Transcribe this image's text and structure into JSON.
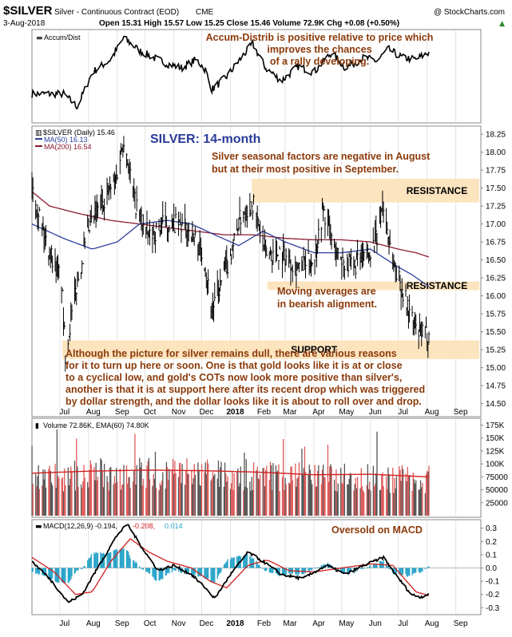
{
  "header": {
    "symbol": "$SILVER",
    "description": "Silver - Continuous Contract (EOD)",
    "exchange": "CME",
    "copyright": "@ StockCharts.com",
    "date": "3-Aug-2018",
    "quote": "Open 15.31  High 15.57  Low 15.25  Close 15.46  Volume 72.9K  Chg +0.08 (+0.50%)",
    "quote_arrow": "▲"
  },
  "colors": {
    "price": "#000000",
    "ma50": "#2d3e9c",
    "ma200": "#8b1a2f",
    "band": "#fce4bf",
    "annotation": "#8b3a0a",
    "title": "#2a3a9a",
    "volume_bar": "#e05a5a",
    "volume_dark": "#555555",
    "macd_hist": "#2aa4c9",
    "macd_signal": "#d02020"
  },
  "icons": {
    "accum_dist": "a-d-glyph",
    "price_panel": "bar-chart-glyph",
    "volume_panel": "volume-glyph",
    "macd_panel": "macd-glyph"
  },
  "chart_data": [
    {
      "type": "line",
      "panel": "accum_dist",
      "legend": "Accum/Dist",
      "annotation": [
        "Accum-Distrib is positive relative to price which",
        "improves the chances",
        "of a rally developing."
      ],
      "x": [
        "2017-07-05",
        "2017-07-20",
        "2017-08-05",
        "2017-08-25",
        "2017-09-08",
        "2017-09-25",
        "2017-10-10",
        "2017-10-25",
        "2017-11-10",
        "2017-11-25",
        "2017-12-05",
        "2017-12-12",
        "2017-12-28",
        "2018-01-15",
        "2018-01-25",
        "2018-02-08",
        "2018-02-25",
        "2018-03-15",
        "2018-04-01",
        "2018-04-20",
        "2018-05-05",
        "2018-05-25",
        "2018-06-08",
        "2018-06-20",
        "2018-07-05",
        "2018-07-20",
        "2018-08-03"
      ],
      "values": [
        30,
        15,
        55,
        70,
        95,
        80,
        72,
        65,
        60,
        70,
        58,
        35,
        50,
        75,
        88,
        60,
        45,
        62,
        55,
        78,
        60,
        72,
        68,
        82,
        72,
        70,
        78
      ],
      "ylim": [
        0,
        100
      ]
    },
    {
      "type": "line",
      "panel": "price",
      "legend_symbol": "$SILVER (Daily) 15.46",
      "legend_ma50": "MA(50) 16.13",
      "legend_ma200": "MA(200) 16.54",
      "title": "SILVER: 14-month",
      "annotations": {
        "seasonal": [
          "Silver seasonal factors are negative in August",
          "but at their most positive in September."
        ],
        "moving_avgs": [
          "Moving averages are",
          "in bearish alignment."
        ],
        "summary": [
          "Although the picture for silver remains dull, there are various reasons",
          "for it to turn up here or soon. One is that gold looks like it is at or close",
          "to a cyclical low, and gold's COTs now look more positive than silver's,",
          "another is that it is at support here after its recent drop which was triggered",
          "by dollar strength, and the dollar looks like it is about to roll over and drop."
        ]
      },
      "bands": [
        {
          "label": "RESISTANCE",
          "y_low": 17.3,
          "y_high": 17.63
        },
        {
          "label": "RESISTANCE",
          "y_low": 16.08,
          "y_high": 16.2
        },
        {
          "label": "SUPPORT",
          "y_low": 15.12,
          "y_high": 15.38
        }
      ],
      "y_ticks": [
        "18.25",
        "18.00",
        "17.75",
        "17.50",
        "17.25",
        "17.00",
        "16.75",
        "16.50",
        "16.25",
        "16.00",
        "15.75",
        "15.50",
        "15.25",
        "15.00",
        "14.75",
        "14.50"
      ],
      "ylim": [
        14.34,
        18.34
      ],
      "series": [
        {
          "name": "$SILVER",
          "x": [
            "2017-06-01",
            "2017-06-15",
            "2017-07-03",
            "2017-07-07",
            "2017-07-20",
            "2017-08-01",
            "2017-08-15",
            "2017-08-30",
            "2017-09-08",
            "2017-09-20",
            "2017-10-05",
            "2017-10-20",
            "2017-11-03",
            "2017-11-20",
            "2017-12-04",
            "2017-12-12",
            "2017-12-28",
            "2018-01-12",
            "2018-01-25",
            "2018-02-08",
            "2018-02-25",
            "2018-03-15",
            "2018-04-01",
            "2018-04-11",
            "2018-04-25",
            "2018-05-10",
            "2018-05-25",
            "2018-06-08",
            "2018-06-14",
            "2018-06-25",
            "2018-07-10",
            "2018-07-20",
            "2018-08-03"
          ],
          "values": [
            17.6,
            16.8,
            16.2,
            15.2,
            16.2,
            16.9,
            17.3,
            17.6,
            18.2,
            17.3,
            16.8,
            17.0,
            17.0,
            16.9,
            16.5,
            15.8,
            16.4,
            17.1,
            17.3,
            16.6,
            16.6,
            16.4,
            16.5,
            17.2,
            16.6,
            16.4,
            16.5,
            16.8,
            17.3,
            16.5,
            15.9,
            15.5,
            15.46
          ]
        },
        {
          "name": "MA(50)",
          "x": [
            "2017-06-01",
            "2017-07-05",
            "2017-08-05",
            "2017-09-01",
            "2017-09-25",
            "2017-10-25",
            "2017-11-20",
            "2017-12-15",
            "2018-01-10",
            "2018-02-05",
            "2018-03-01",
            "2018-04-01",
            "2018-05-01",
            "2018-06-01",
            "2018-07-01",
            "2018-07-15",
            "2018-08-03"
          ],
          "values": [
            17.0,
            16.8,
            16.65,
            16.75,
            17.0,
            17.05,
            17.0,
            16.85,
            16.7,
            16.9,
            16.75,
            16.6,
            16.6,
            16.65,
            16.4,
            16.3,
            16.13
          ]
        },
        {
          "name": "MA(200)",
          "x": [
            "2017-06-01",
            "2017-06-20",
            "2017-07-20",
            "2017-08-25",
            "2017-09-25",
            "2017-10-25",
            "2017-11-25",
            "2017-12-25",
            "2018-01-25",
            "2018-03-01",
            "2018-04-01",
            "2018-05-01",
            "2018-06-01",
            "2018-07-01",
            "2018-07-20",
            "2018-08-03"
          ],
          "values": [
            17.45,
            17.25,
            17.15,
            17.05,
            17.0,
            16.95,
            16.9,
            16.85,
            16.85,
            16.8,
            16.78,
            16.78,
            16.75,
            16.65,
            16.6,
            16.54
          ]
        }
      ]
    },
    {
      "type": "bar",
      "panel": "volume",
      "legend": "Volume 72.86K, EMA(60) 74.80K",
      "y_ticks": [
        "175K",
        "150K",
        "125K",
        "100K",
        "75000",
        "50000",
        "25000"
      ],
      "ylim": [
        0,
        185000
      ],
      "ema_x": [
        "2017-06-01",
        "2017-08-01",
        "2017-10-01",
        "2017-12-01",
        "2018-02-01",
        "2018-04-01",
        "2018-06-01",
        "2018-08-03"
      ],
      "ema_values": [
        82000,
        86000,
        88000,
        87000,
        84000,
        79000,
        80000,
        74800
      ]
    },
    {
      "type": "line",
      "panel": "macd",
      "legend_macd": "MACD(12,26,9) -0.194,",
      "legend_signal": "-0.208,",
      "legend_hist": "0.014",
      "annotation": "Oversold on MACD",
      "y_ticks": [
        "0.3",
        "0.2",
        "0.1",
        "0.0",
        "-0.1",
        "-0.2",
        "-0.3"
      ],
      "ylim": [
        -0.34,
        0.34
      ],
      "series": [
        {
          "name": "MACD",
          "x": [
            "2017-06-01",
            "2017-06-20",
            "2017-07-10",
            "2017-07-25",
            "2017-08-15",
            "2017-09-01",
            "2017-09-12",
            "2017-09-28",
            "2017-10-15",
            "2017-11-01",
            "2017-11-20",
            "2017-12-05",
            "2017-12-15",
            "2018-01-01",
            "2018-01-20",
            "2018-02-05",
            "2018-02-25",
            "2018-03-20",
            "2018-04-15",
            "2018-05-05",
            "2018-05-25",
            "2018-06-15",
            "2018-06-28",
            "2018-07-15",
            "2018-07-25",
            "2018-08-03"
          ],
          "values": [
            0.05,
            -0.08,
            -0.26,
            -0.2,
            0.05,
            0.25,
            0.33,
            0.15,
            -0.02,
            0.02,
            -0.05,
            -0.15,
            -0.23,
            -0.05,
            0.12,
            0.05,
            -0.05,
            -0.08,
            0.02,
            -0.05,
            0.02,
            0.08,
            -0.05,
            -0.2,
            -0.22,
            -0.194
          ]
        },
        {
          "name": "Signal",
          "x": [
            "2017-06-01",
            "2017-06-25",
            "2017-07-18",
            "2017-08-05",
            "2017-08-25",
            "2017-09-15",
            "2017-10-05",
            "2017-10-25",
            "2017-11-20",
            "2017-12-10",
            "2017-12-28",
            "2018-01-20",
            "2018-02-10",
            "2018-03-05",
            "2018-04-01",
            "2018-05-01",
            "2018-06-01",
            "2018-06-25",
            "2018-07-20",
            "2018-08-03"
          ],
          "values": [
            0.08,
            -0.03,
            -0.2,
            -0.18,
            0.05,
            0.22,
            0.12,
            0.05,
            0.0,
            -0.1,
            -0.15,
            0.02,
            0.06,
            -0.02,
            -0.03,
            0.0,
            0.03,
            0.02,
            -0.18,
            -0.208
          ]
        }
      ]
    }
  ],
  "x_axis": {
    "labels": [
      "Jul",
      "Aug",
      "Sep",
      "Oct",
      "Nov",
      "Dec",
      "2018",
      "Feb",
      "Mar",
      "Apr",
      "May",
      "Jun",
      "Jul",
      "Aug",
      "Sep"
    ]
  }
}
